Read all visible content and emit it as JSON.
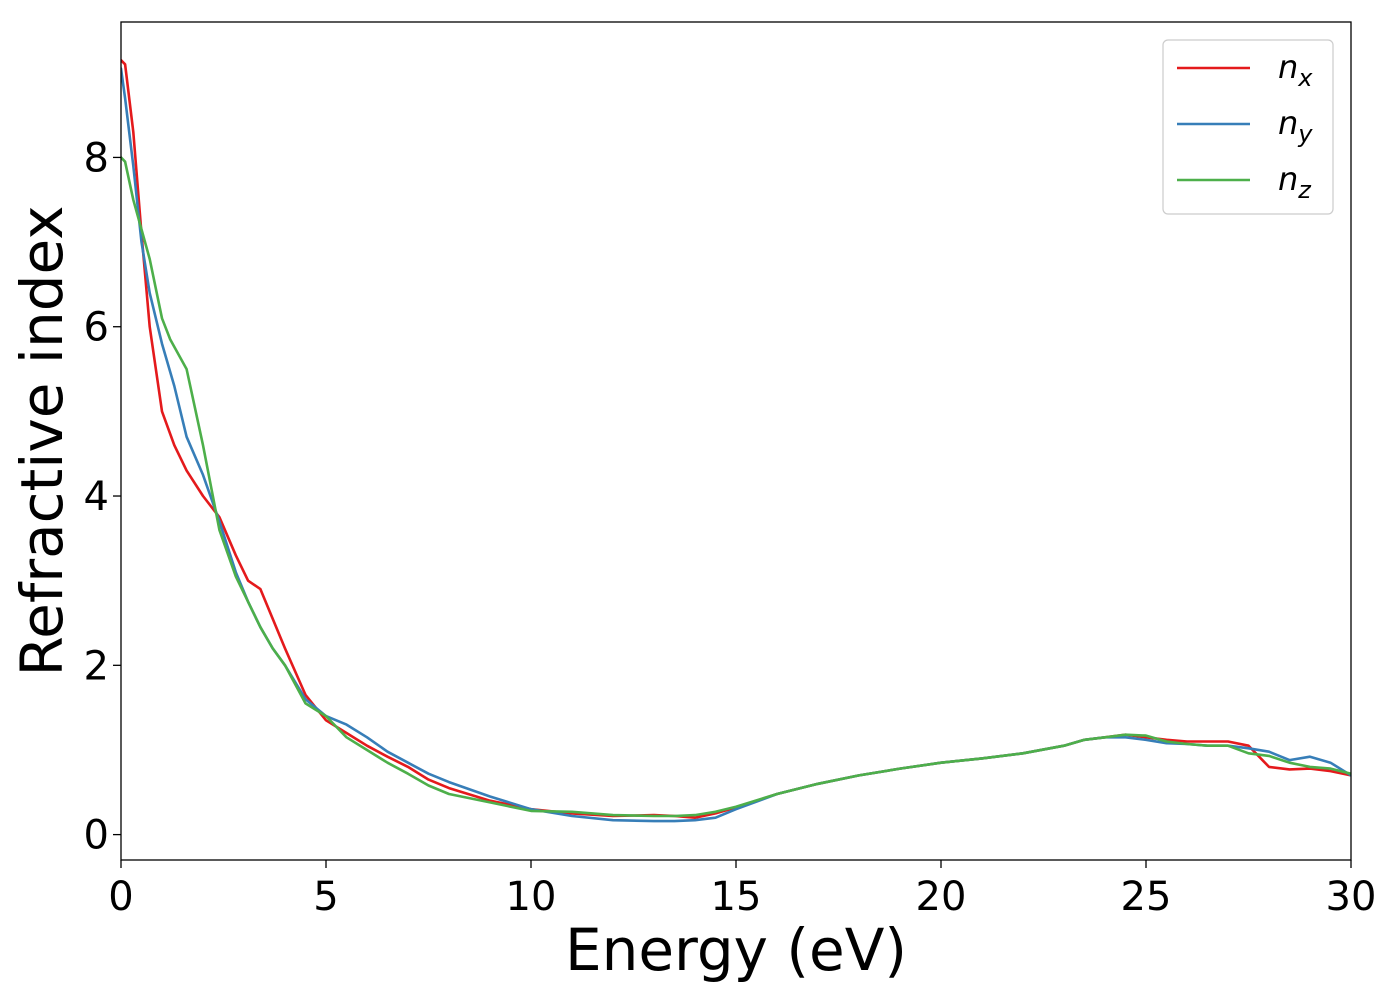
{
  "chart_data": {
    "type": "line",
    "title": "",
    "xlabel": "Energy (eV)",
    "ylabel": "Refractive index",
    "xlim": [
      0,
      30
    ],
    "ylim": [
      -0.3,
      9.6
    ],
    "xticks": [
      0,
      5,
      10,
      15,
      20,
      25,
      30
    ],
    "yticks": [
      0,
      2,
      4,
      6,
      8
    ],
    "grid": false,
    "legend_position": "top-right",
    "series": [
      {
        "name": "n_x",
        "legend_base": "n",
        "legend_sub": "x",
        "color": "#e41a1c",
        "x": [
          0,
          0.1,
          0.3,
          0.5,
          0.7,
          1.0,
          1.3,
          1.6,
          2.0,
          2.4,
          2.8,
          3.1,
          3.4,
          3.7,
          4.0,
          4.5,
          5.0,
          5.5,
          6.0,
          6.5,
          7.0,
          7.5,
          8.0,
          9.0,
          10.0,
          11.0,
          12.0,
          13.0,
          13.5,
          14.0,
          14.5,
          15.0,
          16.0,
          17.0,
          18.0,
          19.0,
          20.0,
          21.0,
          22.0,
          23.0,
          23.5,
          24.0,
          24.5,
          25.0,
          25.5,
          26.0,
          26.5,
          27.0,
          27.5,
          28.0,
          28.5,
          29.0,
          29.5,
          30.0
        ],
        "y": [
          9.15,
          9.1,
          8.3,
          7.1,
          6.0,
          5.0,
          4.6,
          4.3,
          4.0,
          3.75,
          3.3,
          3.0,
          2.9,
          2.55,
          2.2,
          1.65,
          1.35,
          1.2,
          1.05,
          0.92,
          0.8,
          0.65,
          0.55,
          0.4,
          0.3,
          0.25,
          0.22,
          0.23,
          0.22,
          0.2,
          0.25,
          0.32,
          0.48,
          0.6,
          0.7,
          0.78,
          0.85,
          0.9,
          0.96,
          1.05,
          1.12,
          1.15,
          1.18,
          1.15,
          1.12,
          1.1,
          1.1,
          1.1,
          1.05,
          0.8,
          0.77,
          0.78,
          0.75,
          0.7
        ]
      },
      {
        "name": "n_y",
        "legend_base": "n",
        "legend_sub": "y",
        "color": "#377eb8",
        "x": [
          0,
          0.1,
          0.3,
          0.5,
          0.7,
          1.0,
          1.3,
          1.6,
          2.0,
          2.4,
          2.8,
          3.1,
          3.4,
          3.7,
          4.0,
          4.5,
          5.0,
          5.5,
          6.0,
          6.5,
          7.0,
          7.5,
          8.0,
          9.0,
          10.0,
          11.0,
          12.0,
          13.0,
          13.5,
          14.0,
          14.5,
          15.0,
          16.0,
          17.0,
          18.0,
          19.0,
          20.0,
          21.0,
          22.0,
          23.0,
          23.5,
          24.0,
          24.5,
          25.0,
          25.5,
          26.0,
          26.5,
          27.0,
          27.5,
          28.0,
          28.5,
          29.0,
          29.5,
          30.0
        ],
        "y": [
          9.05,
          8.7,
          7.9,
          7.0,
          6.4,
          5.8,
          5.3,
          4.7,
          4.25,
          3.7,
          3.1,
          2.75,
          2.45,
          2.2,
          2.0,
          1.6,
          1.4,
          1.3,
          1.15,
          0.98,
          0.85,
          0.72,
          0.62,
          0.45,
          0.3,
          0.22,
          0.17,
          0.16,
          0.16,
          0.17,
          0.2,
          0.3,
          0.48,
          0.6,
          0.7,
          0.78,
          0.85,
          0.9,
          0.96,
          1.05,
          1.12,
          1.15,
          1.15,
          1.12,
          1.08,
          1.07,
          1.05,
          1.05,
          1.02,
          0.98,
          0.88,
          0.92,
          0.85,
          0.7
        ]
      },
      {
        "name": "n_z",
        "legend_base": "n",
        "legend_sub": "z",
        "color": "#4daf4a",
        "x": [
          0,
          0.1,
          0.3,
          0.5,
          0.7,
          1.0,
          1.2,
          1.6,
          2.0,
          2.4,
          2.8,
          3.1,
          3.4,
          3.7,
          4.0,
          4.5,
          5.0,
          5.5,
          6.0,
          6.5,
          7.0,
          7.5,
          8.0,
          9.0,
          10.0,
          11.0,
          12.0,
          13.0,
          13.5,
          14.0,
          14.5,
          15.0,
          16.0,
          17.0,
          18.0,
          19.0,
          20.0,
          21.0,
          22.0,
          23.0,
          23.5,
          24.0,
          24.5,
          25.0,
          25.5,
          26.0,
          26.5,
          27.0,
          27.5,
          28.0,
          28.5,
          29.0,
          29.5,
          30.0
        ],
        "y": [
          8.0,
          7.95,
          7.5,
          7.15,
          6.8,
          6.1,
          5.85,
          5.5,
          4.6,
          3.6,
          3.05,
          2.75,
          2.45,
          2.2,
          2.0,
          1.55,
          1.4,
          1.15,
          1.0,
          0.85,
          0.72,
          0.58,
          0.48,
          0.38,
          0.28,
          0.27,
          0.23,
          0.22,
          0.22,
          0.23,
          0.27,
          0.33,
          0.48,
          0.6,
          0.7,
          0.78,
          0.85,
          0.9,
          0.96,
          1.05,
          1.12,
          1.15,
          1.18,
          1.17,
          1.1,
          1.07,
          1.05,
          1.05,
          0.96,
          0.93,
          0.85,
          0.8,
          0.78,
          0.72
        ]
      }
    ]
  }
}
